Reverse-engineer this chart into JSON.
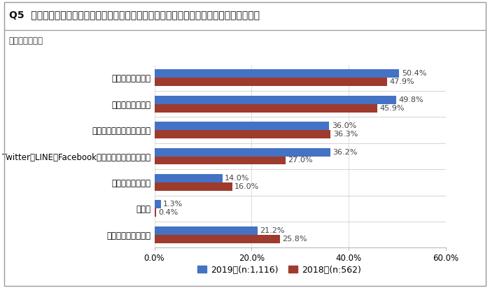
{
  "title": "Q5  被災時ご家族等との安否確認に、どのような手段を活用することを想定していますか。",
  "subtitle": "（複数回答可）",
  "categories": [
    "携帯電話での通話",
    "携帯電話のメール",
    "災害用の各種伝言サービス",
    "TwitterやLINE、Facebook等のソーシャルメディア",
    "固定電話での通話",
    "その他",
    "特に想定していない"
  ],
  "values_2019": [
    50.4,
    49.8,
    36.0,
    36.2,
    14.0,
    1.3,
    21.2
  ],
  "values_2018": [
    47.9,
    45.9,
    36.3,
    27.0,
    16.0,
    0.4,
    25.8
  ],
  "labels_2019": [
    "50.4%",
    "49.8%",
    "36.0%",
    "36.2%",
    "14.0%",
    "1.3%",
    "21.2%"
  ],
  "labels_2018": [
    "47.9%",
    "45.9%",
    "36.3%",
    "27.0%",
    "16.0%",
    "0.4%",
    "25.8%"
  ],
  "color_2019": "#4472C4",
  "color_2018": "#9E3B2D",
  "legend_2019": "2019年(n:1,116)",
  "legend_2018": "2018年(n:562)",
  "xlim": [
    0,
    60
  ],
  "xticks": [
    0,
    20,
    40,
    60
  ],
  "xticklabels": [
    "0.0%",
    "20.0%",
    "40.0%",
    "60.0%"
  ],
  "bar_height": 0.32,
  "background_color": "#ffffff",
  "title_fontsize": 10,
  "label_fontsize": 8,
  "tick_fontsize": 8.5,
  "category_fontsize": 8.5,
  "legend_fontsize": 9
}
